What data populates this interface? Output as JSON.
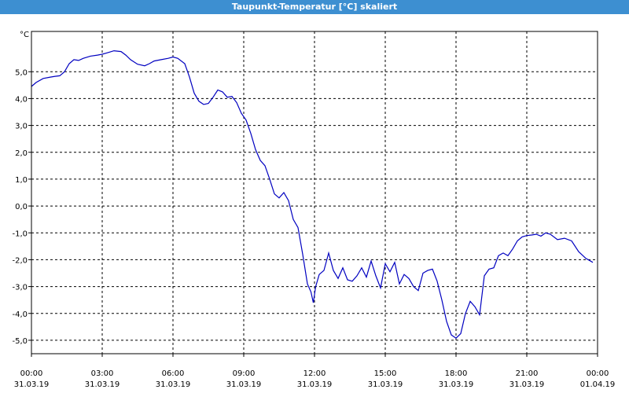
{
  "window": {
    "title": "Taupunkt-Temperatur [°C] skaliert"
  },
  "colors": {
    "titlebar": "#3d8fd1",
    "line": "#0000c0",
    "grid": "#000000"
  },
  "chart_data": {
    "type": "line",
    "title": "",
    "ylabel": "°C",
    "xlabel": "",
    "ylim": [
      -5.5,
      6.5
    ],
    "xlim": [
      0,
      24
    ],
    "grid": true,
    "yticks": [
      5.0,
      4.0,
      3.0,
      2.0,
      1.0,
      0.0,
      -1.0,
      -2.0,
      -3.0,
      -4.0,
      -5.0
    ],
    "ytick_labels": [
      "5,0",
      "4,0",
      "3,0",
      "2,0",
      "1,0",
      "0,0",
      "-1,0",
      "-2,0",
      "-3,0",
      "-4,0",
      "-5,0"
    ],
    "xticks": [
      {
        "x": 0,
        "time": "00:00",
        "date": "31.03.19"
      },
      {
        "x": 3,
        "time": "03:00",
        "date": "31.03.19"
      },
      {
        "x": 6,
        "time": "06:00",
        "date": "31.03.19"
      },
      {
        "x": 9,
        "time": "09:00",
        "date": "31.03.19"
      },
      {
        "x": 12,
        "time": "12:00",
        "date": "31.03.19"
      },
      {
        "x": 15,
        "time": "15:00",
        "date": "31.03.19"
      },
      {
        "x": 18,
        "time": "18:00",
        "date": "31.03.19"
      },
      {
        "x": 21,
        "time": "21:00",
        "date": "31.03.19"
      },
      {
        "x": 24,
        "time": "00:00",
        "date": "01.04.19"
      }
    ],
    "series": [
      {
        "x": [
          0.0,
          0.2,
          0.5,
          0.8,
          1.0,
          1.2,
          1.4,
          1.6,
          1.8,
          2.0,
          2.2,
          2.5,
          2.8,
          3.0,
          3.2,
          3.5,
          3.8,
          4.0,
          4.2,
          4.5,
          4.8,
          5.0,
          5.2,
          5.5,
          5.8,
          6.0,
          6.2,
          6.5,
          6.7,
          6.9,
          7.1,
          7.3,
          7.5,
          7.7,
          7.9,
          8.1,
          8.3,
          8.5,
          8.7,
          8.9,
          9.1,
          9.3,
          9.5,
          9.7,
          9.9,
          10.1,
          10.3,
          10.5,
          10.7,
          10.9,
          11.1,
          11.3,
          11.5,
          11.7,
          11.85,
          11.95,
          12.05,
          12.2,
          12.4,
          12.6,
          12.8,
          13.0,
          13.2,
          13.4,
          13.6,
          13.8,
          14.0,
          14.2,
          14.4,
          14.6,
          14.8,
          15.0,
          15.2,
          15.4,
          15.6,
          15.8,
          16.0,
          16.2,
          16.4,
          16.6,
          16.8,
          17.0,
          17.2,
          17.4,
          17.6,
          17.8,
          18.0,
          18.2,
          18.4,
          18.6,
          18.8,
          19.0,
          19.2,
          19.4,
          19.6,
          19.8,
          20.0,
          20.2,
          20.4,
          20.6,
          20.8,
          21.0,
          21.2,
          21.4,
          21.6,
          21.8,
          22.0,
          22.3,
          22.6,
          22.9,
          23.2,
          23.5,
          23.8
        ],
        "values": [
          4.45,
          4.6,
          4.75,
          4.8,
          4.83,
          4.85,
          5.0,
          5.3,
          5.45,
          5.42,
          5.5,
          5.58,
          5.62,
          5.65,
          5.7,
          5.78,
          5.75,
          5.62,
          5.45,
          5.28,
          5.22,
          5.3,
          5.4,
          5.45,
          5.5,
          5.55,
          5.5,
          5.3,
          4.8,
          4.2,
          3.9,
          3.78,
          3.82,
          4.05,
          4.32,
          4.25,
          4.05,
          4.08,
          3.85,
          3.45,
          3.2,
          2.7,
          2.1,
          1.7,
          1.5,
          1.0,
          0.45,
          0.3,
          0.5,
          0.2,
          -0.5,
          -0.8,
          -1.8,
          -2.9,
          -3.2,
          -3.6,
          -3.0,
          -2.55,
          -2.4,
          -1.75,
          -2.4,
          -2.7,
          -2.3,
          -2.75,
          -2.8,
          -2.6,
          -2.3,
          -2.65,
          -2.05,
          -2.6,
          -3.05,
          -2.15,
          -2.45,
          -2.1,
          -2.9,
          -2.55,
          -2.7,
          -3.0,
          -3.15,
          -2.5,
          -2.4,
          -2.35,
          -2.8,
          -3.5,
          -4.3,
          -4.8,
          -4.92,
          -4.75,
          -4.0,
          -3.55,
          -3.75,
          -4.05,
          -2.6,
          -2.35,
          -2.3,
          -1.85,
          -1.75,
          -1.85,
          -1.6,
          -1.3,
          -1.15,
          -1.1,
          -1.08,
          -1.05,
          -1.12,
          -1.0,
          -1.05,
          -1.25,
          -1.2,
          -1.3,
          -1.7,
          -1.95,
          -2.1
        ]
      }
    ]
  }
}
